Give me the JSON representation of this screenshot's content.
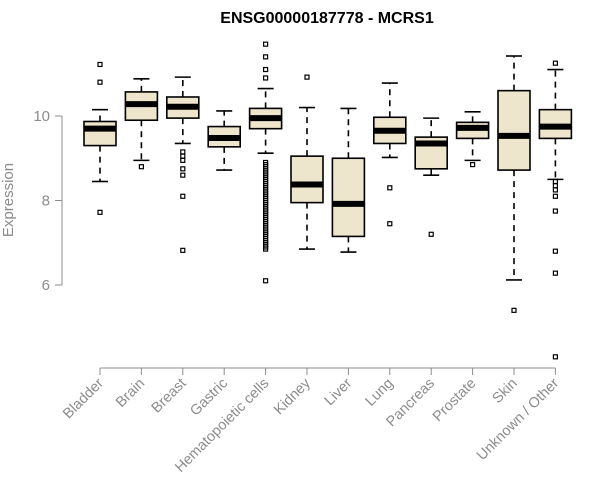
{
  "chart_data": {
    "type": "box",
    "title": "ENSG00000187778 - MCRS1",
    "xlabel": "",
    "ylabel": "Expression",
    "ylim": [
      4.0,
      11.8
    ],
    "yticks": [
      6,
      8,
      10
    ],
    "grid": false,
    "box_fill": "#ede6cc",
    "categories": [
      "Bladder",
      "Brain",
      "Breast",
      "Gastric",
      "Hematopoietic cells",
      "Kidney",
      "Liver",
      "Lung",
      "Pancreas",
      "Prostate",
      "Skin",
      "Unknown / Other"
    ],
    "boxes": [
      {
        "name": "Bladder",
        "q1": 9.3,
        "median": 9.7,
        "q3": 9.87,
        "whisker_low": 8.45,
        "whisker_high": 10.15,
        "outliers": [
          7.72,
          10.8,
          11.22
        ]
      },
      {
        "name": "Brain",
        "q1": 9.9,
        "median": 10.28,
        "q3": 10.57,
        "whisker_low": 8.95,
        "whisker_high": 10.88,
        "outliers": [
          8.8
        ]
      },
      {
        "name": "Breast",
        "q1": 9.95,
        "median": 10.22,
        "q3": 10.45,
        "whisker_low": 9.35,
        "whisker_high": 10.92,
        "outliers": [
          6.82,
          8.1,
          8.6,
          8.75,
          8.95,
          9.05,
          9.15
        ]
      },
      {
        "name": "Gastric",
        "q1": 9.27,
        "median": 9.48,
        "q3": 9.75,
        "whisker_low": 8.72,
        "whisker_high": 10.12,
        "outliers": []
      },
      {
        "name": "Hematopoietic cells",
        "q1": 9.7,
        "median": 9.95,
        "q3": 10.18,
        "whisker_low": 9.12,
        "whisker_high": 10.65,
        "outliers": [
          6.1,
          6.85,
          6.9,
          6.95,
          7.0,
          7.05,
          7.1,
          7.15,
          7.2,
          7.25,
          7.3,
          7.35,
          7.4,
          7.45,
          7.5,
          7.55,
          7.6,
          7.65,
          7.7,
          7.75,
          7.8,
          7.85,
          7.9,
          7.95,
          8.0,
          8.05,
          8.1,
          8.15,
          8.2,
          8.25,
          8.3,
          8.35,
          8.4,
          8.45,
          8.5,
          8.55,
          8.6,
          8.65,
          8.7,
          8.75,
          8.8,
          8.85,
          8.9,
          10.9,
          11.1,
          11.4,
          11.7
        ]
      },
      {
        "name": "Kidney",
        "q1": 7.95,
        "median": 8.38,
        "q3": 9.05,
        "whisker_low": 6.85,
        "whisker_high": 10.2,
        "outliers": [
          10.92
        ]
      },
      {
        "name": "Liver",
        "q1": 7.15,
        "median": 7.92,
        "q3": 9.0,
        "whisker_low": 6.78,
        "whisker_high": 10.18,
        "outliers": []
      },
      {
        "name": "Lung",
        "q1": 9.35,
        "median": 9.65,
        "q3": 9.97,
        "whisker_low": 9.02,
        "whisker_high": 10.78,
        "outliers": [
          7.45,
          8.3
        ]
      },
      {
        "name": "Pancreas",
        "q1": 8.75,
        "median": 9.35,
        "q3": 9.5,
        "whisker_low": 8.6,
        "whisker_high": 9.95,
        "outliers": [
          7.2
        ]
      },
      {
        "name": "Prostate",
        "q1": 9.47,
        "median": 9.72,
        "q3": 9.85,
        "whisker_low": 8.95,
        "whisker_high": 10.1,
        "outliers": [
          8.85
        ]
      },
      {
        "name": "Skin",
        "q1": 8.72,
        "median": 9.53,
        "q3": 10.6,
        "whisker_low": 6.12,
        "whisker_high": 11.42,
        "outliers": [
          5.4
        ]
      },
      {
        "name": "Unknown / Other",
        "q1": 9.47,
        "median": 9.75,
        "q3": 10.15,
        "whisker_low": 8.5,
        "whisker_high": 11.1,
        "outliers": [
          4.3,
          6.28,
          6.8,
          7.75,
          8.1,
          8.25,
          8.35,
          8.45,
          11.25
        ]
      }
    ]
  }
}
